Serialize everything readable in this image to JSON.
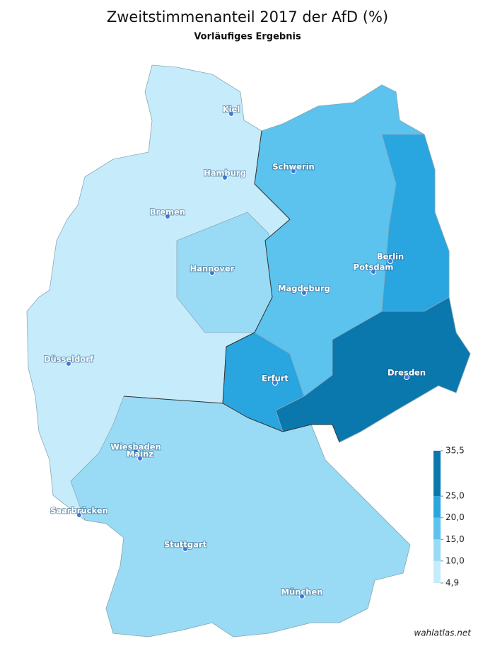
{
  "title": "Zweitstimmenanteil 2017 der AfD (%)",
  "subtitle": "Vorläufiges Ergebnis",
  "cities": [
    "Kiel",
    "Hamburg",
    "Bremen",
    "Schwerin",
    "Berlin",
    "Potsdam",
    "Hannover",
    "Magdeburg",
    "Düsseldorf",
    "Erfurt",
    "Dresden",
    "Wiesbaden",
    "Mainz",
    "Saarbrücken",
    "Stuttgart",
    "München"
  ],
  "legend": {
    "ticks": [
      {
        "value": 4.9,
        "label": "4,9"
      },
      {
        "value": 10.0,
        "label": "10,0"
      },
      {
        "value": 15.0,
        "label": "15,0"
      },
      {
        "value": 20.0,
        "label": "20,0"
      },
      {
        "value": 25.0,
        "label": "25,0"
      },
      {
        "value": 35.5,
        "label": "35,5"
      }
    ],
    "colors": [
      "#c6ebfb",
      "#99dbf5",
      "#5cc2ee",
      "#29a5e0",
      "#0a77ad"
    ]
  },
  "credit": "wahlatlas.net"
}
